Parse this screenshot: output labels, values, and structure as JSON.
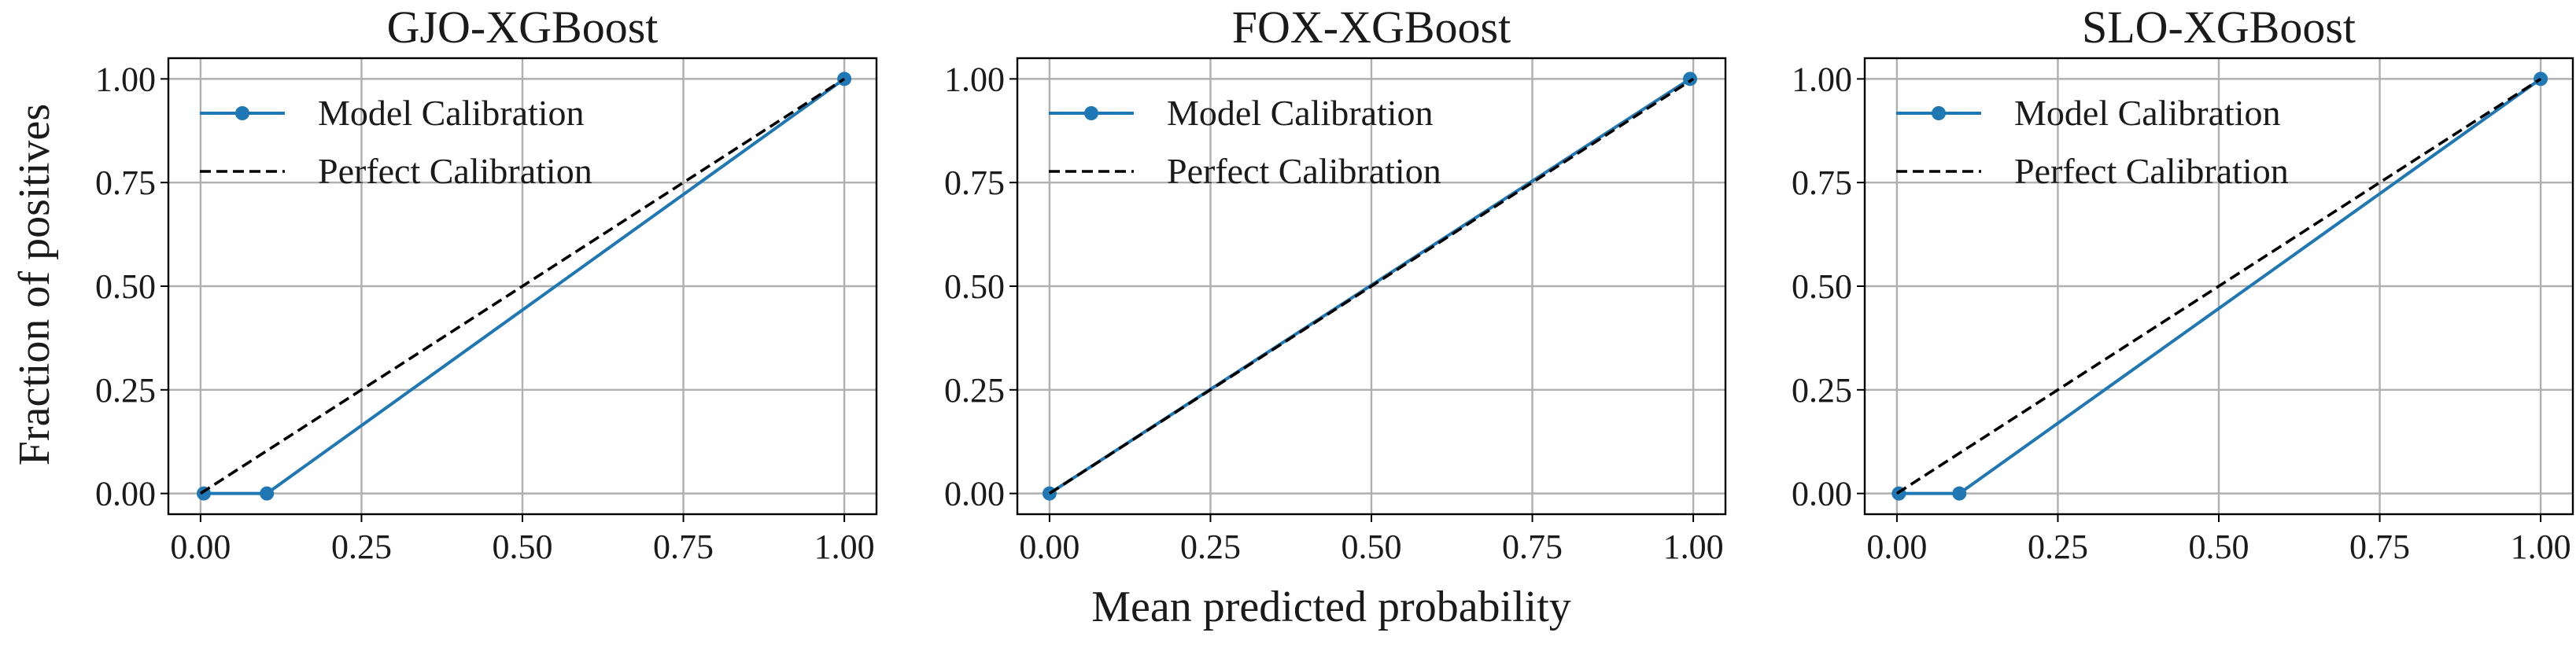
{
  "figure": {
    "ylabel": "Fraction of positives",
    "xlabel": "Mean predicted probability"
  },
  "chart_data": [
    {
      "type": "line",
      "title": "GJO-XGBoost",
      "xlim": [
        -0.05,
        1.05
      ],
      "ylim": [
        -0.05,
        1.05
      ],
      "xticks": [
        "0.00",
        "0.25",
        "0.50",
        "0.75",
        "1.00"
      ],
      "yticks": [
        "0.00",
        "0.25",
        "0.50",
        "0.75",
        "1.00"
      ],
      "grid": true,
      "legend_position": "top-left",
      "series": [
        {
          "name": "Model Calibration",
          "color": "#1f77b4",
          "style": "solid-markers",
          "x": [
            0.005,
            0.103,
            1.0
          ],
          "y": [
            0.0,
            0.0,
            1.0
          ]
        },
        {
          "name": "Perfect Calibration",
          "color": "#000000",
          "style": "dashed",
          "x": [
            0.0,
            1.0
          ],
          "y": [
            0.0,
            1.0
          ]
        }
      ]
    },
    {
      "type": "line",
      "title": "FOX-XGBoost",
      "xlim": [
        -0.05,
        1.05
      ],
      "ylim": [
        -0.05,
        1.05
      ],
      "xticks": [
        "0.00",
        "0.25",
        "0.50",
        "0.75",
        "1.00"
      ],
      "yticks": [
        "0.00",
        "0.25",
        "0.50",
        "0.75",
        "1.00"
      ],
      "grid": true,
      "legend_position": "top-left",
      "series": [
        {
          "name": "Model Calibration",
          "color": "#1f77b4",
          "style": "solid-markers",
          "x": [
            0.0,
            0.995
          ],
          "y": [
            0.0,
            1.0
          ]
        },
        {
          "name": "Perfect Calibration",
          "color": "#000000",
          "style": "dashed",
          "x": [
            0.0,
            1.0
          ],
          "y": [
            0.0,
            1.0
          ]
        }
      ]
    },
    {
      "type": "line",
      "title": "SLO-XGBoost",
      "xlim": [
        -0.05,
        1.05
      ],
      "ylim": [
        -0.05,
        1.05
      ],
      "xticks": [
        "0.00",
        "0.25",
        "0.50",
        "0.75",
        "1.00"
      ],
      "yticks": [
        "0.00",
        "0.25",
        "0.50",
        "0.75",
        "1.00"
      ],
      "grid": true,
      "legend_position": "top-left",
      "series": [
        {
          "name": "Model Calibration",
          "color": "#1f77b4",
          "style": "solid-markers",
          "x": [
            0.003,
            0.097,
            1.0
          ],
          "y": [
            0.0,
            0.0,
            1.0
          ]
        },
        {
          "name": "Perfect Calibration",
          "color": "#000000",
          "style": "dashed",
          "x": [
            0.0,
            1.0
          ],
          "y": [
            0.0,
            1.0
          ]
        }
      ]
    }
  ]
}
